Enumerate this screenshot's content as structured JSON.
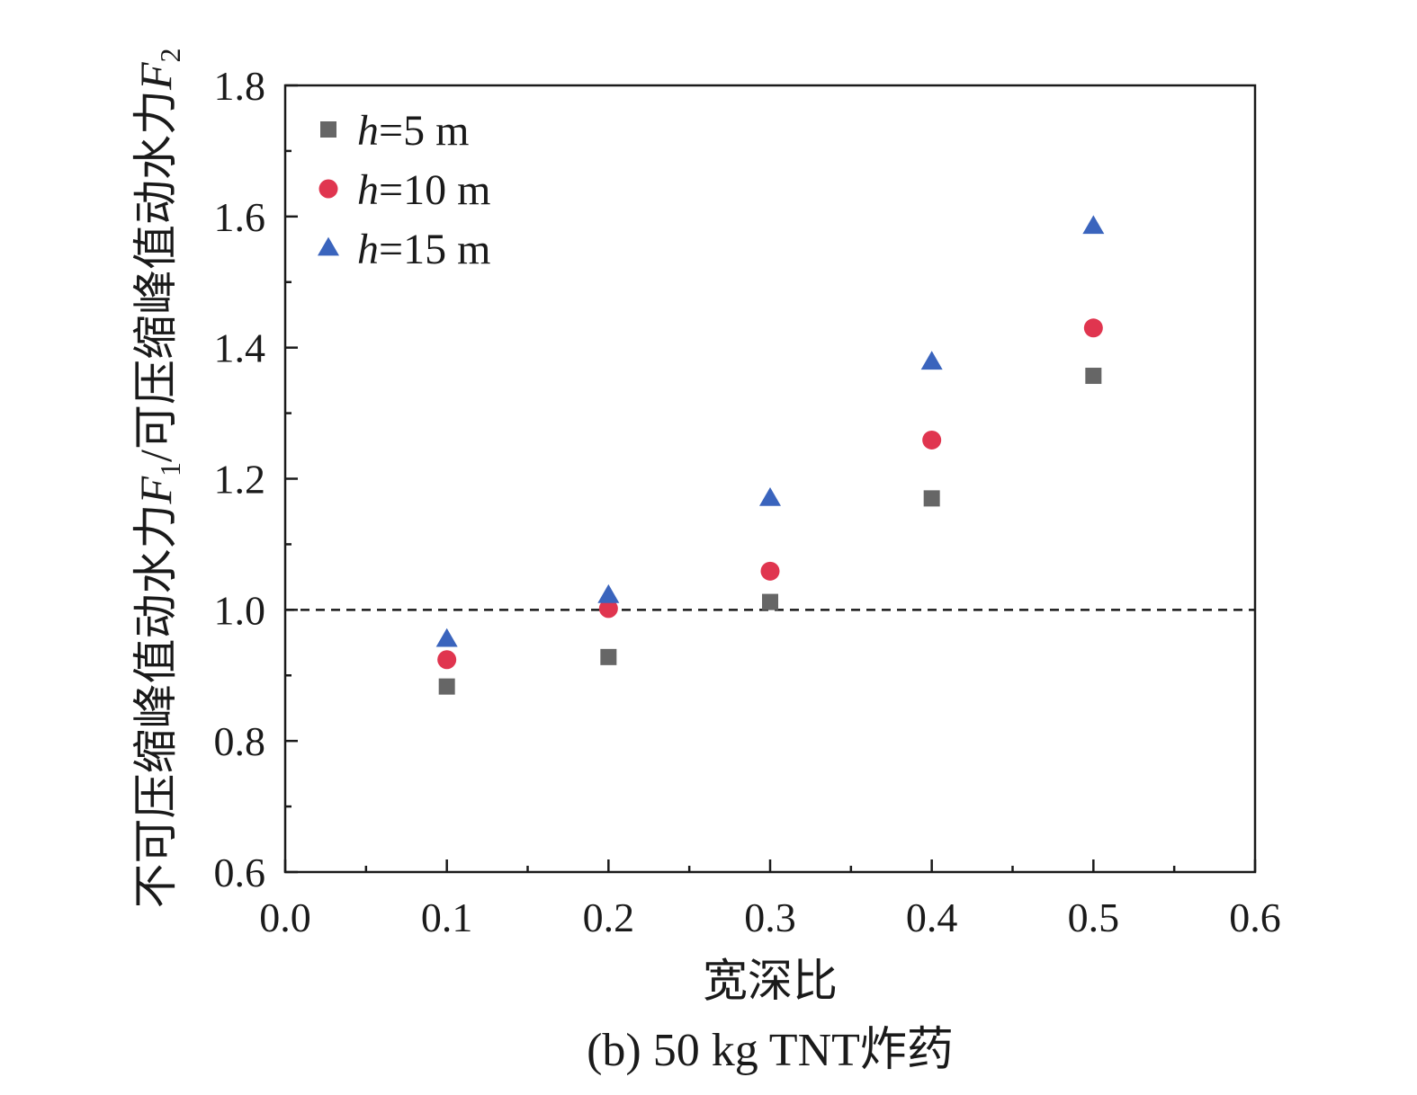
{
  "chart_data": {
    "type": "scatter",
    "xlabel": "宽深比",
    "ylabel": {
      "prefix": "不可压缩峰值动水力",
      "f1": "F",
      "f1_sub": "1",
      "mid": "/可压缩峰值动水力",
      "f2": "F",
      "f2_sub": "2"
    },
    "caption": "(b) 50 kg TNT炸药",
    "xlim": [
      0.0,
      0.6
    ],
    "ylim": [
      0.6,
      1.8
    ],
    "x_ticks": [
      "0.0",
      "0.1",
      "0.2",
      "0.3",
      "0.4",
      "0.5",
      "0.6"
    ],
    "y_ticks": [
      "0.6",
      "0.8",
      "1.0",
      "1.2",
      "1.4",
      "1.6",
      "1.8"
    ],
    "reference_line": {
      "y": 1.0,
      "style": "dashed"
    },
    "legend_position": "top-left",
    "grid": false,
    "series": [
      {
        "name_italic": "h",
        "name_rest": "=5 m",
        "marker": "square",
        "color": "#666666",
        "x": [
          0.1,
          0.2,
          0.3,
          0.4,
          0.5
        ],
        "y": [
          0.883,
          0.928,
          1.012,
          1.17,
          1.357
        ]
      },
      {
        "name_italic": "h",
        "name_rest": "=10 m",
        "marker": "circle",
        "color": "#e0354f",
        "x": [
          0.1,
          0.2,
          0.3,
          0.4,
          0.5
        ],
        "y": [
          0.924,
          1.002,
          1.059,
          1.259,
          1.43
        ]
      },
      {
        "name_italic": "h",
        "name_rest": "=15 m",
        "marker": "triangle",
        "color": "#3a64bd",
        "x": [
          0.1,
          0.2,
          0.3,
          0.4,
          0.5
        ],
        "y": [
          0.955,
          1.022,
          1.17,
          1.378,
          1.585
        ]
      }
    ]
  }
}
